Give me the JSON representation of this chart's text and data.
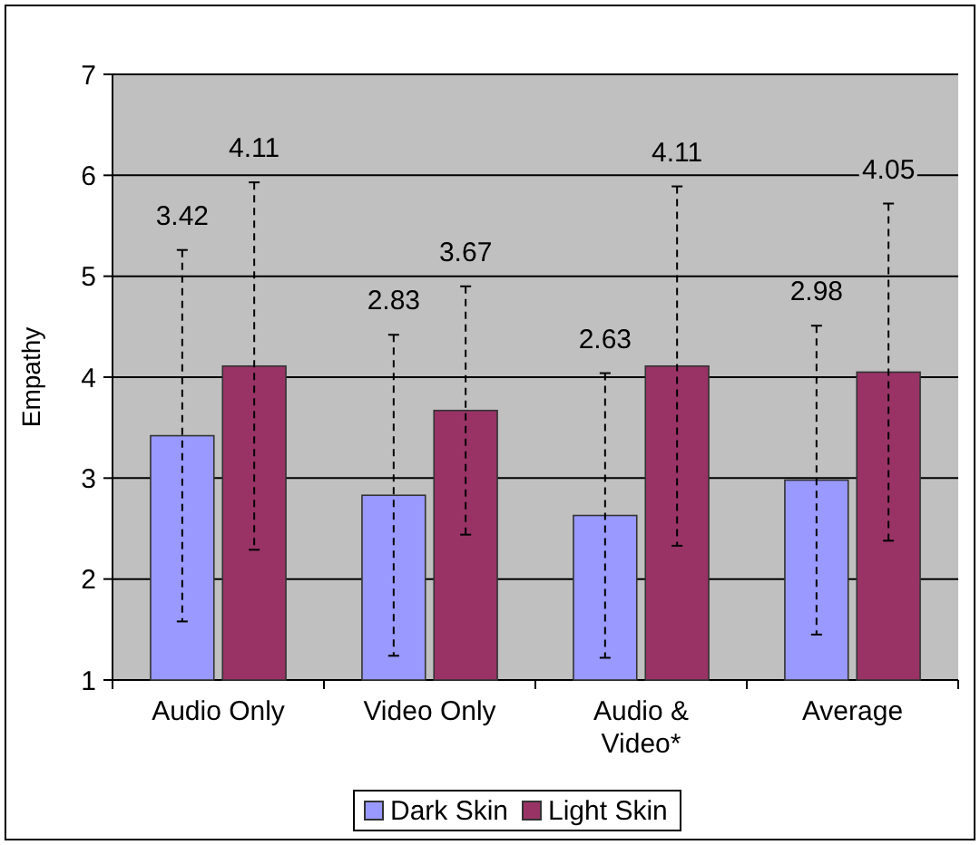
{
  "chart_data": {
    "type": "bar",
    "ylabel": "Empathy",
    "categories": [
      "Audio Only",
      "Video Only",
      "Audio & Video*",
      "Average"
    ],
    "series": [
      {
        "name": "Dark Skin",
        "color": "#9999ff",
        "values": [
          3.42,
          2.83,
          2.63,
          2.98
        ],
        "errors": [
          1.84,
          1.59,
          1.41,
          1.53
        ]
      },
      {
        "name": "Light Skin",
        "color": "#993366",
        "values": [
          4.11,
          3.67,
          4.11,
          4.05
        ],
        "errors": [
          1.82,
          1.23,
          1.78,
          1.67
        ]
      }
    ],
    "annotations": [
      "3.42",
      "4.11",
      "2.83",
      "3.67",
      "2.63",
      "4.11",
      "2.98",
      "4.05"
    ],
    "ylim": [
      1,
      7
    ],
    "yticks": [
      1,
      2,
      3,
      4,
      5,
      6,
      7
    ],
    "grid": "y",
    "legend": "bottom",
    "line_style": "dashed"
  }
}
